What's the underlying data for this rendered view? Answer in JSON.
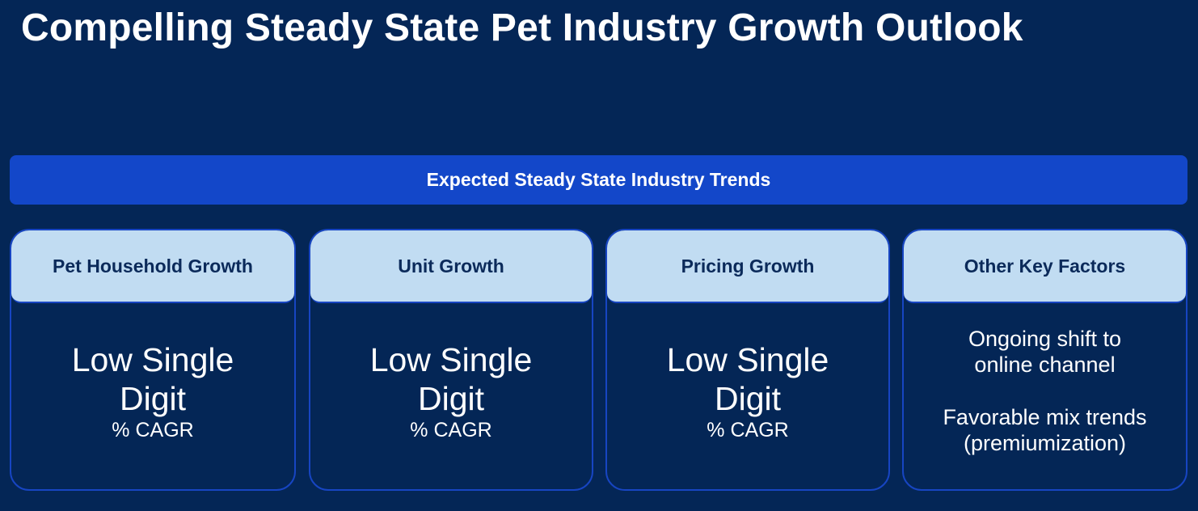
{
  "title": "Compelling Steady State Pet Industry Growth Outlook",
  "banner": "Expected Steady State Industry Trends",
  "cards": [
    {
      "header": "Pet Household Growth",
      "metric_line1": "Low Single",
      "metric_line2": "Digit",
      "unit": "% CAGR"
    },
    {
      "header": "Unit Growth",
      "metric_line1": "Low Single",
      "metric_line2": "Digit",
      "unit": "% CAGR"
    },
    {
      "header": "Pricing Growth",
      "metric_line1": "Low Single",
      "metric_line2": "Digit",
      "unit": "% CAGR"
    },
    {
      "header": "Other Key Factors",
      "factors": [
        {
          "line1": "Ongoing shift to",
          "line2": "online channel"
        },
        {
          "line1": "Favorable mix trends",
          "line2": "(premiumization)"
        }
      ]
    }
  ]
}
